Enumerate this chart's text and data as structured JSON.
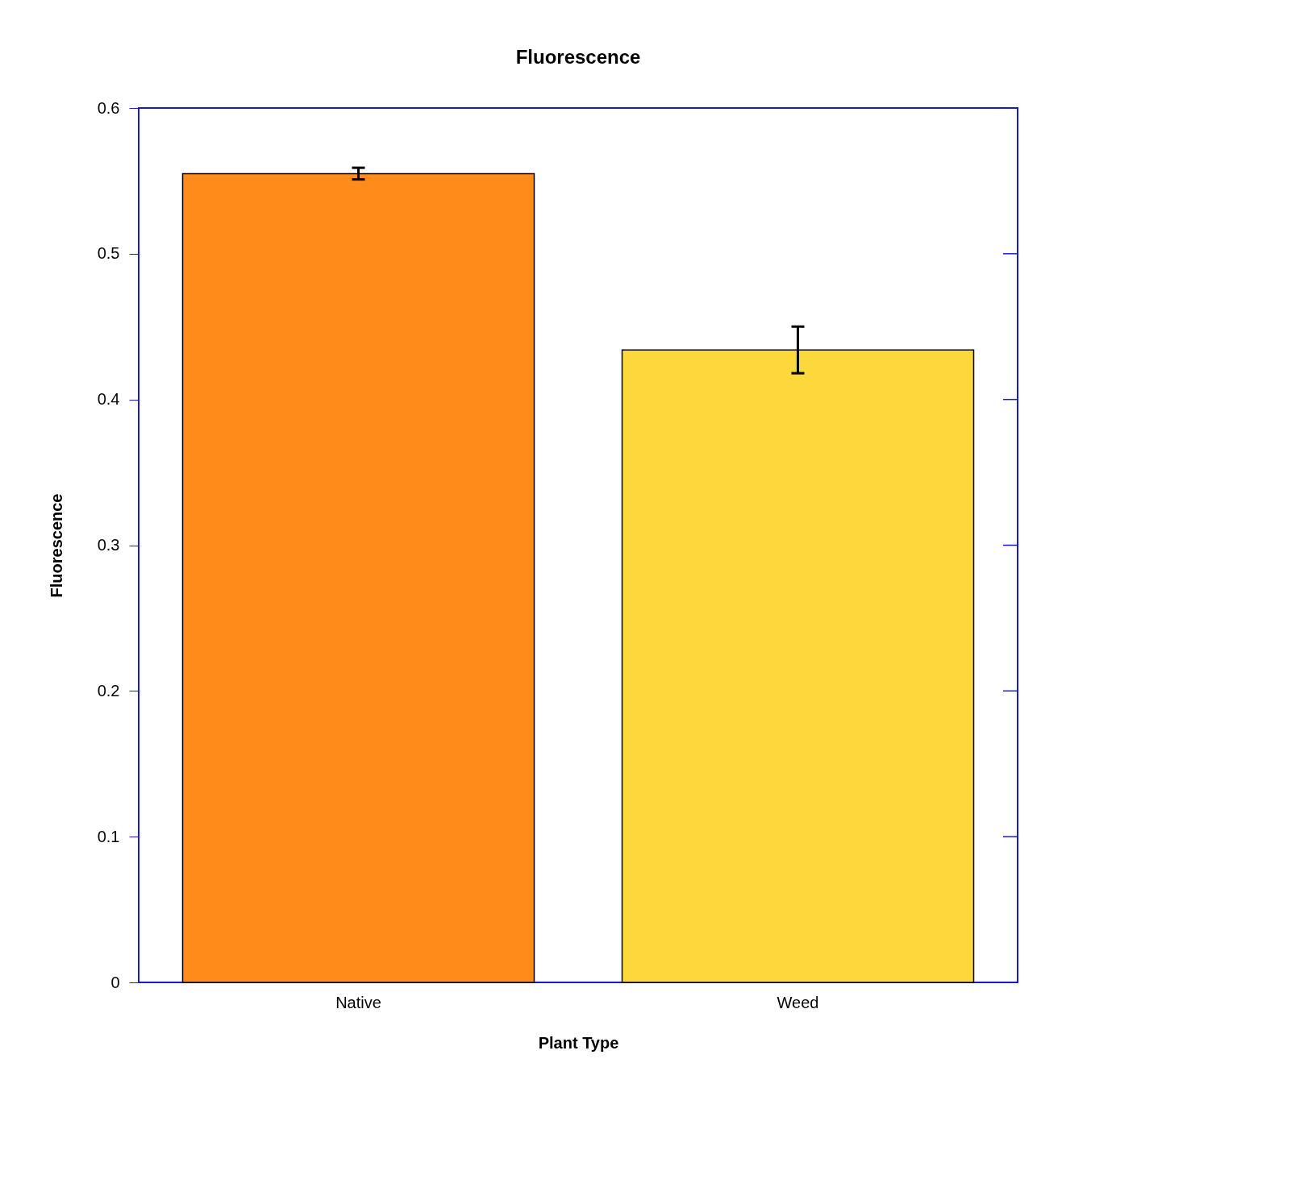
{
  "chart_data": {
    "type": "bar",
    "title": "Fluorescence",
    "xlabel": "Plant Type",
    "ylabel": "Fluorescence",
    "categories": [
      "Native",
      "Weed"
    ],
    "values": [
      0.555,
      0.434
    ],
    "errors": [
      0.004,
      0.016
    ],
    "colors": [
      "#ff8c1a",
      "#fdd83c"
    ],
    "ylim": [
      0,
      0.6
    ],
    "yticks": [
      0,
      0.1,
      0.2,
      0.3,
      0.4,
      0.5,
      0.6
    ],
    "grid": false
  }
}
